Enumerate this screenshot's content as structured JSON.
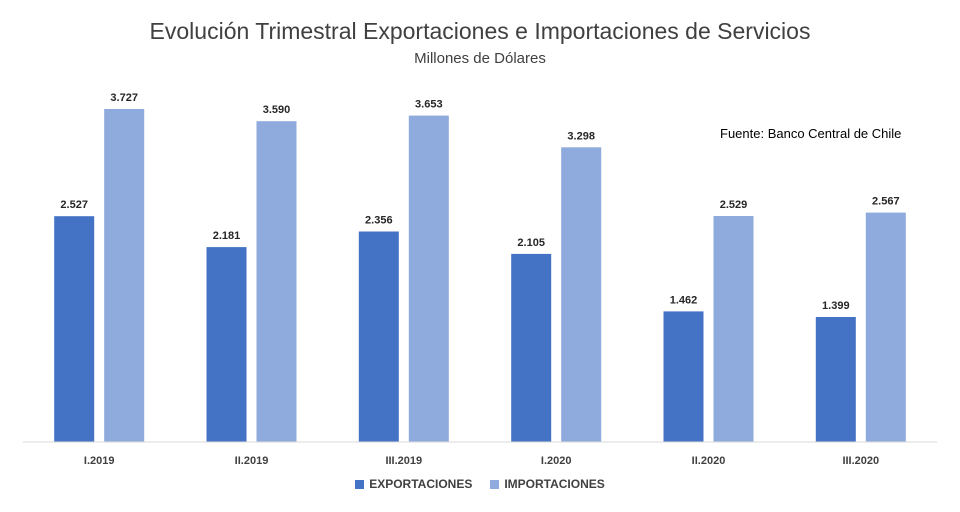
{
  "chart_data": {
    "type": "bar",
    "title": "Evolución Trimestral Exportaciones e Importaciones de Servicios",
    "subtitle": "Millones de Dólares",
    "annotation": "Fuente: Banco Central de Chile",
    "categories": [
      "I.2019",
      "II.2019",
      "III.2019",
      "I.2020",
      "II.2020",
      "III.2020"
    ],
    "series": [
      {
        "name": "EXPORTACIONES",
        "color": "#4472C4",
        "values": [
          2527,
          2181,
          2356,
          2105,
          1462,
          1399
        ],
        "labels": [
          "2.527",
          "2.181",
          "2.356",
          "2.105",
          "1.462",
          "1.399"
        ]
      },
      {
        "name": "IMPORTACIONES",
        "color": "#8FAADC",
        "values": [
          3727,
          3590,
          3653,
          3298,
          2529,
          2567
        ],
        "labels": [
          "3.727",
          "3.590",
          "3.653",
          "3.298",
          "2.529",
          "2.567"
        ]
      }
    ],
    "ylim": [
      0,
      4000
    ],
    "grid": false,
    "legend": "bottom"
  }
}
